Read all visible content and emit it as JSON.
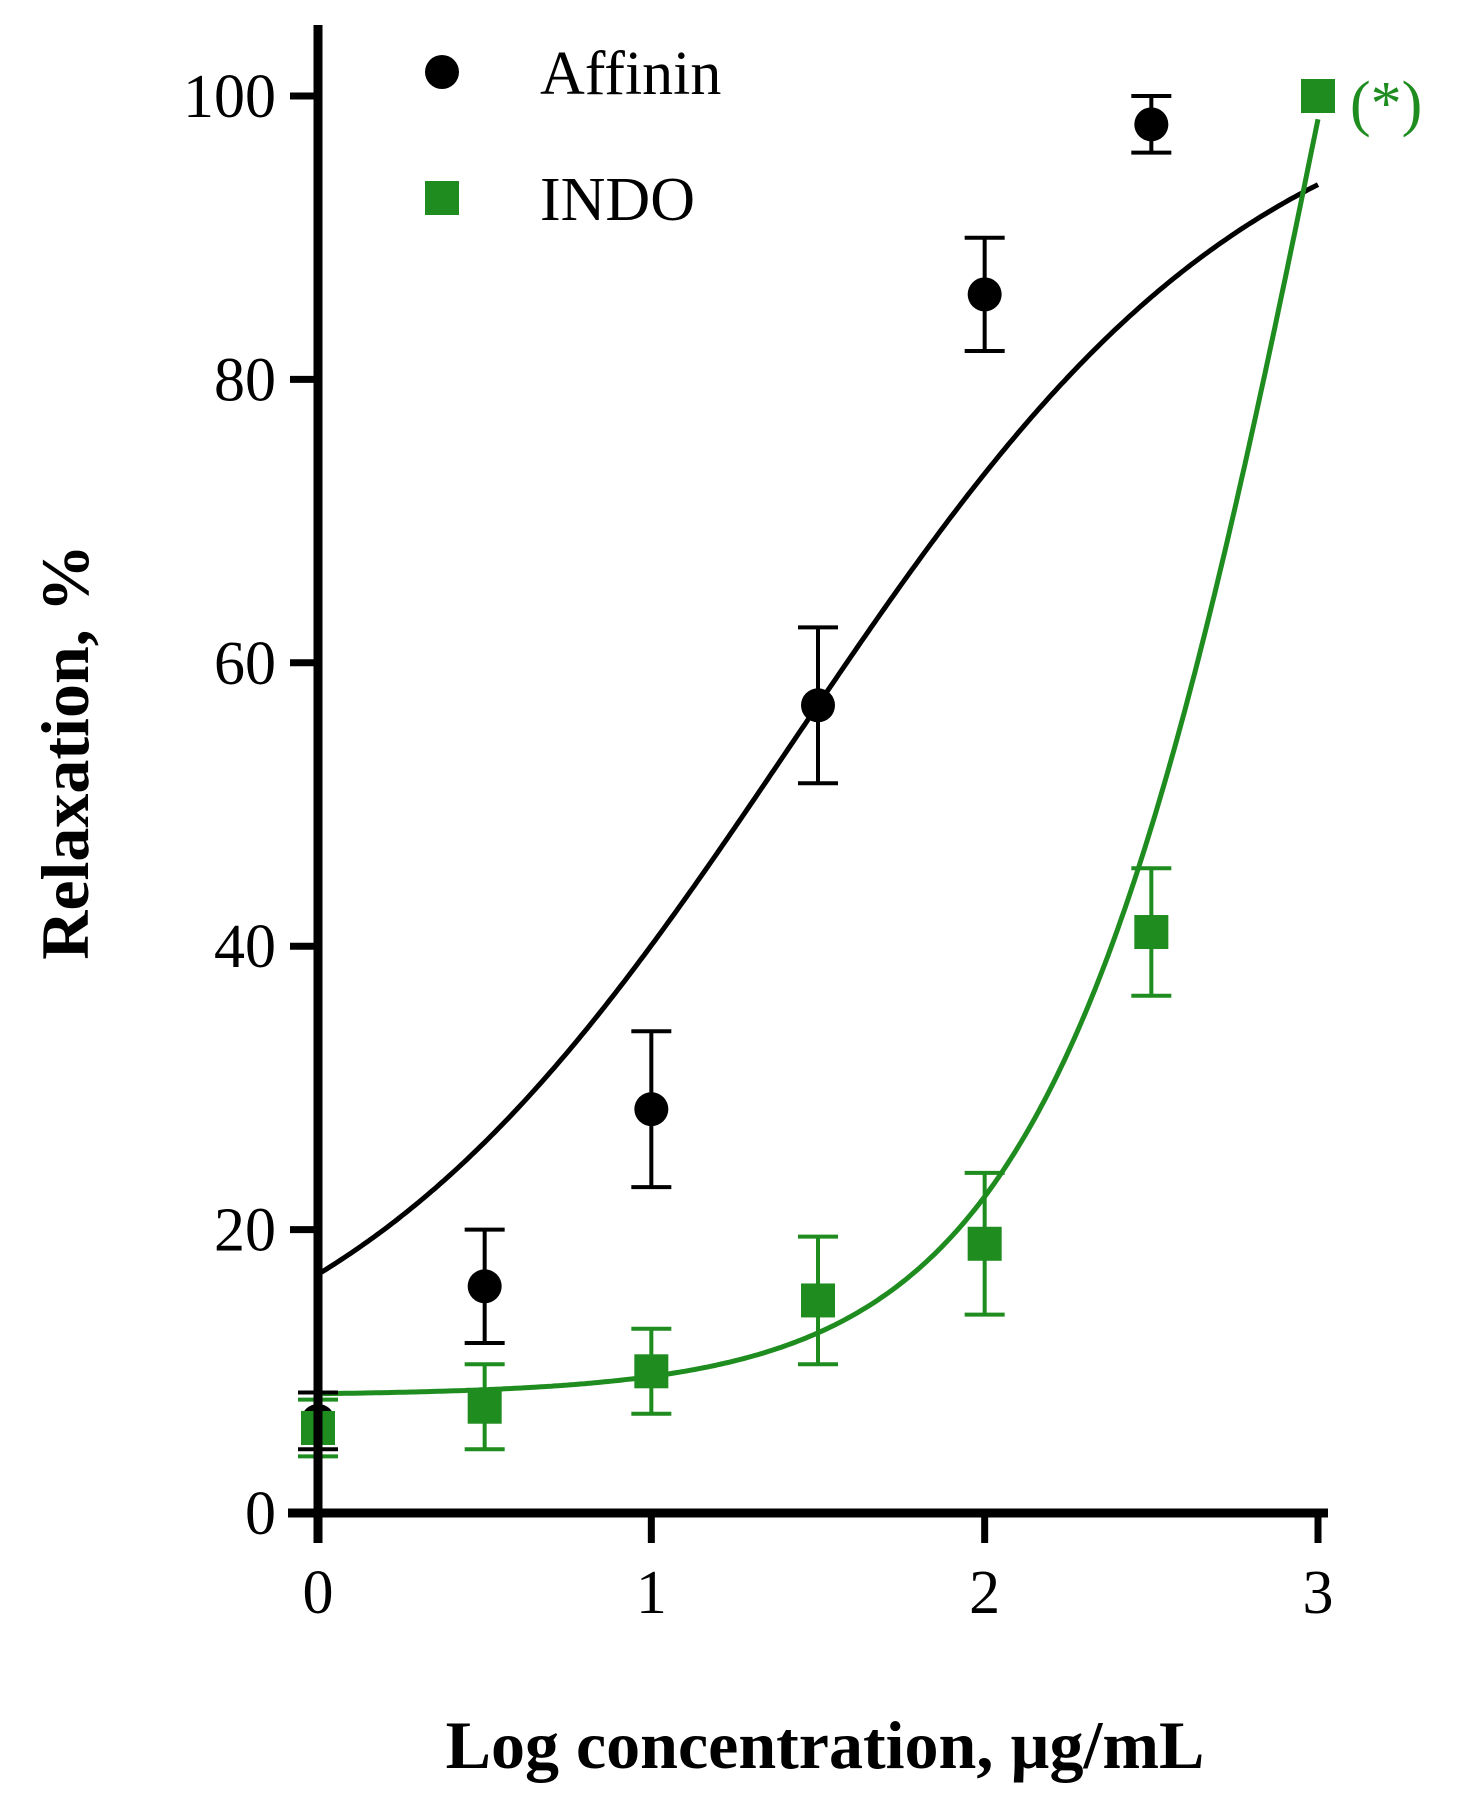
{
  "chart_data": {
    "type": "line",
    "xlabel": "Log concentration, µg/mL",
    "ylabel": "Relaxation, %",
    "xlim": [
      0,
      3
    ],
    "ylim": [
      0,
      100
    ],
    "x_ticks": [
      "0",
      "1",
      "2",
      "3"
    ],
    "y_ticks": [
      "0",
      "20",
      "40",
      "60",
      "80",
      "100"
    ],
    "grid": false,
    "legend_position": "top-left",
    "annotation": {
      "text": "(*)",
      "x": 3,
      "y": 100
    },
    "series": [
      {
        "name": "Affinin",
        "marker": "circle",
        "color": "#000000",
        "x": [
          0,
          0.5,
          1,
          1.5,
          2,
          2.5,
          3
        ],
        "y": [
          6.5,
          16,
          28.5,
          57,
          86,
          98,
          100
        ],
        "err": [
          2,
          4,
          5.5,
          5.5,
          4,
          2,
          0
        ],
        "fit": {
          "bottom": 5.5,
          "top": 103,
          "logEC50": 1.42,
          "hill": 0.62
        }
      },
      {
        "name": "INDO",
        "marker": "square",
        "color": "#1e8c1e",
        "x": [
          0,
          0.5,
          1,
          1.5,
          2,
          2.5,
          3
        ],
        "y": [
          6,
          7.5,
          10,
          15,
          19,
          41,
          100
        ],
        "err": [
          2,
          3,
          3,
          4.5,
          5,
          4.5,
          0
        ],
        "fit": {
          "bottom": 8.3,
          "top": 200,
          "logEC50": 3.05,
          "hill": 1.05
        }
      }
    ]
  }
}
